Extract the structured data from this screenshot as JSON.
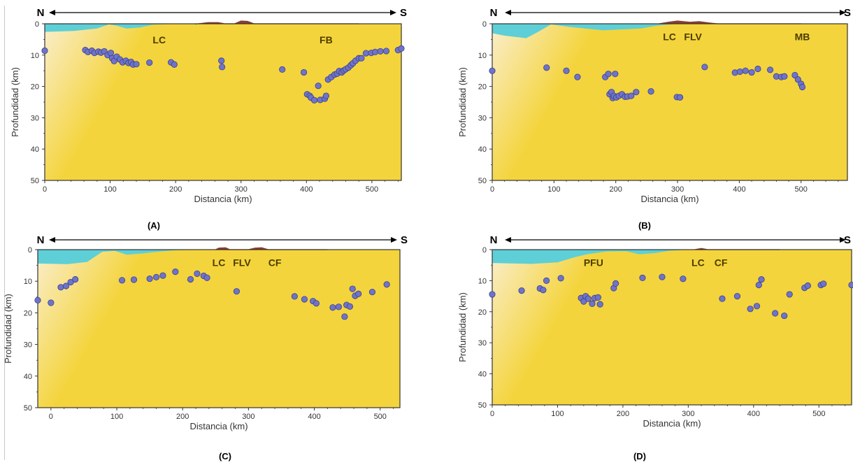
{
  "colors": {
    "crust": "#f4d43c",
    "crust_light": "#faeecc",
    "sea": "#5ecfd6",
    "relief": "#8a3d32",
    "point": "#6f74c8",
    "point_stroke": "#3a3f8c",
    "frame": "#333333"
  },
  "arrow": {
    "north": "N",
    "south": "S"
  },
  "chart_data": [
    {
      "type": "scatter",
      "panel_label": "(A)",
      "xlabel": "Distancia (km)",
      "ylabel": "Profundidad (km)",
      "xlim": [
        0,
        545
      ],
      "ylim": [
        0,
        50
      ],
      "y_inverted": true,
      "xticks": [
        0,
        100,
        200,
        300,
        400,
        500
      ],
      "yticks": [
        0,
        10,
        20,
        30,
        40,
        50
      ],
      "sea": [
        [
          0,
          2.6
        ],
        [
          45,
          2.3
        ],
        [
          80,
          1.5
        ],
        [
          98,
          0.2
        ],
        [
          110,
          0.6
        ],
        [
          125,
          1.5
        ],
        [
          145,
          1.2
        ],
        [
          165,
          0.3
        ],
        [
          200,
          0
        ]
      ],
      "relief": [
        [
          230,
          0.1
        ],
        [
          250,
          -0.4
        ],
        [
          265,
          -0.4
        ],
        [
          275,
          0
        ],
        [
          290,
          0
        ],
        [
          300,
          -0.9
        ],
        [
          310,
          -0.8
        ],
        [
          320,
          0
        ],
        [
          480,
          0
        ]
      ],
      "labels": [
        {
          "text": "LC",
          "x": 175,
          "y": 4
        },
        {
          "text": "FB",
          "x": 430,
          "y": 4
        }
      ],
      "points": [
        [
          0,
          8.6
        ],
        [
          62,
          8.4
        ],
        [
          66,
          9
        ],
        [
          72,
          8.6
        ],
        [
          76,
          9.3
        ],
        [
          82,
          8.9
        ],
        [
          86,
          9.2
        ],
        [
          91,
          8.8
        ],
        [
          96,
          10
        ],
        [
          101,
          9.3
        ],
        [
          103,
          11
        ],
        [
          106,
          11.9
        ],
        [
          110,
          10.5
        ],
        [
          115,
          11.4
        ],
        [
          119,
          12.3
        ],
        [
          124,
          11.8
        ],
        [
          128,
          12.5
        ],
        [
          132,
          12.2
        ],
        [
          135,
          13
        ],
        [
          140,
          12.9
        ],
        [
          160,
          12.4
        ],
        [
          193,
          12.3
        ],
        [
          198,
          13
        ],
        [
          270,
          11.8
        ],
        [
          271,
          13.8
        ],
        [
          363,
          14.6
        ],
        [
          396,
          15.5
        ],
        [
          401,
          22.5
        ],
        [
          405,
          23
        ],
        [
          407,
          23.6
        ],
        [
          412,
          24.4
        ],
        [
          418,
          19.8
        ],
        [
          421,
          24.3
        ],
        [
          428,
          23.9
        ],
        [
          430,
          23
        ],
        [
          433,
          17.8
        ],
        [
          438,
          17
        ],
        [
          443,
          16.2
        ],
        [
          447,
          15.9
        ],
        [
          450,
          15.1
        ],
        [
          454,
          15.5
        ],
        [
          457,
          14.9
        ],
        [
          460,
          14.5
        ],
        [
          464,
          14
        ],
        [
          468,
          13.2
        ],
        [
          471,
          12.6
        ],
        [
          475,
          11.8
        ],
        [
          480,
          11
        ],
        [
          484,
          11
        ],
        [
          491,
          9.4
        ],
        [
          499,
          9.3
        ],
        [
          505,
          9
        ],
        [
          513,
          8.8
        ],
        [
          522,
          8.7
        ],
        [
          540,
          8.4
        ],
        [
          545,
          7.9
        ]
      ]
    },
    {
      "type": "scatter",
      "panel_label": "(B)",
      "xlabel": "Distancia (km)",
      "ylabel": "Profundidad (km)",
      "xlim": [
        0,
        575
      ],
      "ylim": [
        0,
        50
      ],
      "y_inverted": true,
      "xticks": [
        0,
        100,
        200,
        300,
        400,
        500
      ],
      "yticks": [
        0,
        10,
        20,
        30,
        40,
        50
      ],
      "sea": [
        [
          0,
          3
        ],
        [
          20,
          3.8
        ],
        [
          55,
          4.6
        ],
        [
          75,
          2.5
        ],
        [
          95,
          0.2
        ],
        [
          125,
          1
        ],
        [
          180,
          2.1
        ],
        [
          240,
          1.5
        ],
        [
          270,
          0.5
        ],
        [
          300,
          0
        ]
      ],
      "relief": [
        [
          270,
          0
        ],
        [
          285,
          -0.5
        ],
        [
          300,
          -0.9
        ],
        [
          320,
          -0.5
        ],
        [
          335,
          -0.7
        ],
        [
          350,
          -0.3
        ],
        [
          365,
          0
        ],
        [
          500,
          0
        ]
      ],
      "labels": [
        {
          "text": "LC",
          "x": 287,
          "y": 3
        },
        {
          "text": "FLV",
          "x": 325,
          "y": 3
        },
        {
          "text": "MB",
          "x": 502,
          "y": 3
        }
      ],
      "points": [
        [
          0,
          15
        ],
        [
          88,
          14
        ],
        [
          120,
          15
        ],
        [
          138,
          17
        ],
        [
          183,
          17
        ],
        [
          188,
          16
        ],
        [
          190,
          22.5
        ],
        [
          193,
          21.8
        ],
        [
          195,
          23.7
        ],
        [
          197,
          23
        ],
        [
          199,
          16
        ],
        [
          201,
          23.5
        ],
        [
          205,
          23
        ],
        [
          210,
          22.5
        ],
        [
          215,
          23.3
        ],
        [
          219,
          23.2
        ],
        [
          225,
          23
        ],
        [
          233,
          21.8
        ],
        [
          257,
          21.6
        ],
        [
          299,
          23.4
        ],
        [
          304,
          23.5
        ],
        [
          344,
          13.8
        ],
        [
          393,
          15.6
        ],
        [
          401,
          15.3
        ],
        [
          410,
          15
        ],
        [
          420,
          15.5
        ],
        [
          430,
          14.4
        ],
        [
          450,
          14.7
        ],
        [
          460,
          16.8
        ],
        [
          468,
          17
        ],
        [
          473,
          16.8
        ],
        [
          490,
          16.4
        ],
        [
          495,
          17.8
        ],
        [
          500,
          19.2
        ],
        [
          502,
          20.2
        ]
      ]
    },
    {
      "type": "scatter",
      "panel_label": "(C)",
      "xlabel": "Distancia (km)",
      "ylabel": "Profundidad (km)",
      "xlim": [
        -20,
        530
      ],
      "ylim": [
        0,
        50
      ],
      "y_inverted": true,
      "xticks": [
        0,
        100,
        200,
        300,
        400,
        500
      ],
      "yticks": [
        0,
        10,
        20,
        30,
        40,
        50
      ],
      "sea": [
        [
          -20,
          4.4
        ],
        [
          25,
          4.6
        ],
        [
          55,
          3.9
        ],
        [
          78,
          0.7
        ],
        [
          97,
          0.4
        ],
        [
          115,
          1.6
        ],
        [
          140,
          1.2
        ],
        [
          165,
          0.6
        ],
        [
          190,
          0.2
        ],
        [
          230,
          0
        ]
      ],
      "relief": [
        [
          250,
          0
        ],
        [
          255,
          -0.5
        ],
        [
          265,
          -0.6
        ],
        [
          272,
          0
        ],
        [
          300,
          0
        ],
        [
          310,
          -0.5
        ],
        [
          320,
          -0.6
        ],
        [
          330,
          0
        ],
        [
          420,
          0
        ]
      ],
      "labels": [
        {
          "text": "LC",
          "x": 255,
          "y": 3
        },
        {
          "text": "FLV",
          "x": 290,
          "y": 3
        },
        {
          "text": "CF",
          "x": 340,
          "y": 3
        }
      ],
      "points": [
        [
          -20,
          16
        ],
        [
          0,
          16.8
        ],
        [
          15,
          11.9
        ],
        [
          23,
          11.5
        ],
        [
          30,
          10.3
        ],
        [
          37,
          9.4
        ],
        [
          108,
          9.7
        ],
        [
          126,
          9.5
        ],
        [
          150,
          9.2
        ],
        [
          160,
          8.7
        ],
        [
          170,
          8.2
        ],
        [
          189,
          7
        ],
        [
          212,
          9.4
        ],
        [
          222,
          7.6
        ],
        [
          232,
          8.3
        ],
        [
          237,
          8.9
        ],
        [
          282,
          13.2
        ],
        [
          370,
          14.8
        ],
        [
          385,
          15.7
        ],
        [
          398,
          16.3
        ],
        [
          403,
          17
        ],
        [
          428,
          18.3
        ],
        [
          437,
          18.1
        ],
        [
          446,
          21.2
        ],
        [
          449,
          17.5
        ],
        [
          454,
          18
        ],
        [
          458,
          12.4
        ],
        [
          462,
          14.6
        ],
        [
          467,
          14
        ],
        [
          488,
          13.4
        ],
        [
          510,
          11
        ]
      ]
    },
    {
      "type": "scatter",
      "panel_label": "(D)",
      "xlabel": "Distancia (km)",
      "ylabel": "Profundidad (km)",
      "xlim": [
        0,
        550
      ],
      "ylim": [
        0,
        50
      ],
      "y_inverted": true,
      "xticks": [
        0,
        100,
        200,
        300,
        400,
        500
      ],
      "yticks": [
        0,
        10,
        20,
        30,
        40,
        50
      ],
      "sea": [
        [
          0,
          4.3
        ],
        [
          60,
          4.6
        ],
        [
          100,
          4.1
        ],
        [
          125,
          2.5
        ],
        [
          145,
          1.5
        ],
        [
          175,
          0.6
        ],
        [
          205,
          0.5
        ],
        [
          225,
          1.5
        ],
        [
          250,
          1.1
        ],
        [
          270,
          0.4
        ],
        [
          300,
          0
        ]
      ],
      "relief": [
        [
          310,
          0
        ],
        [
          320,
          -0.4
        ],
        [
          330,
          0
        ],
        [
          440,
          0
        ]
      ],
      "labels": [
        {
          "text": "PFU",
          "x": 155,
          "y": 3
        },
        {
          "text": "LC",
          "x": 315,
          "y": 3
        },
        {
          "text": "CF",
          "x": 350,
          "y": 3
        }
      ],
      "points": [
        [
          0,
          14.4
        ],
        [
          45,
          13.2
        ],
        [
          73,
          12.5
        ],
        [
          78,
          13
        ],
        [
          83,
          10
        ],
        [
          105,
          9.2
        ],
        [
          136,
          15.6
        ],
        [
          140,
          16.7
        ],
        [
          143,
          15
        ],
        [
          147,
          15.8
        ],
        [
          153,
          17.4
        ],
        [
          157,
          15.6
        ],
        [
          162,
          15.4
        ],
        [
          165,
          17.6
        ],
        [
          186,
          12.4
        ],
        [
          189,
          10.9
        ],
        [
          230,
          9.1
        ],
        [
          260,
          8.8
        ],
        [
          292,
          9.4
        ],
        [
          352,
          15.8
        ],
        [
          375,
          15
        ],
        [
          395,
          19.1
        ],
        [
          405,
          18.2
        ],
        [
          408,
          11.4
        ],
        [
          412,
          9.6
        ],
        [
          433,
          20.5
        ],
        [
          447,
          21.3
        ],
        [
          455,
          14.4
        ],
        [
          478,
          12.3
        ],
        [
          483,
          11.6
        ],
        [
          503,
          11.4
        ],
        [
          507,
          11
        ],
        [
          550,
          11.4
        ]
      ]
    }
  ]
}
